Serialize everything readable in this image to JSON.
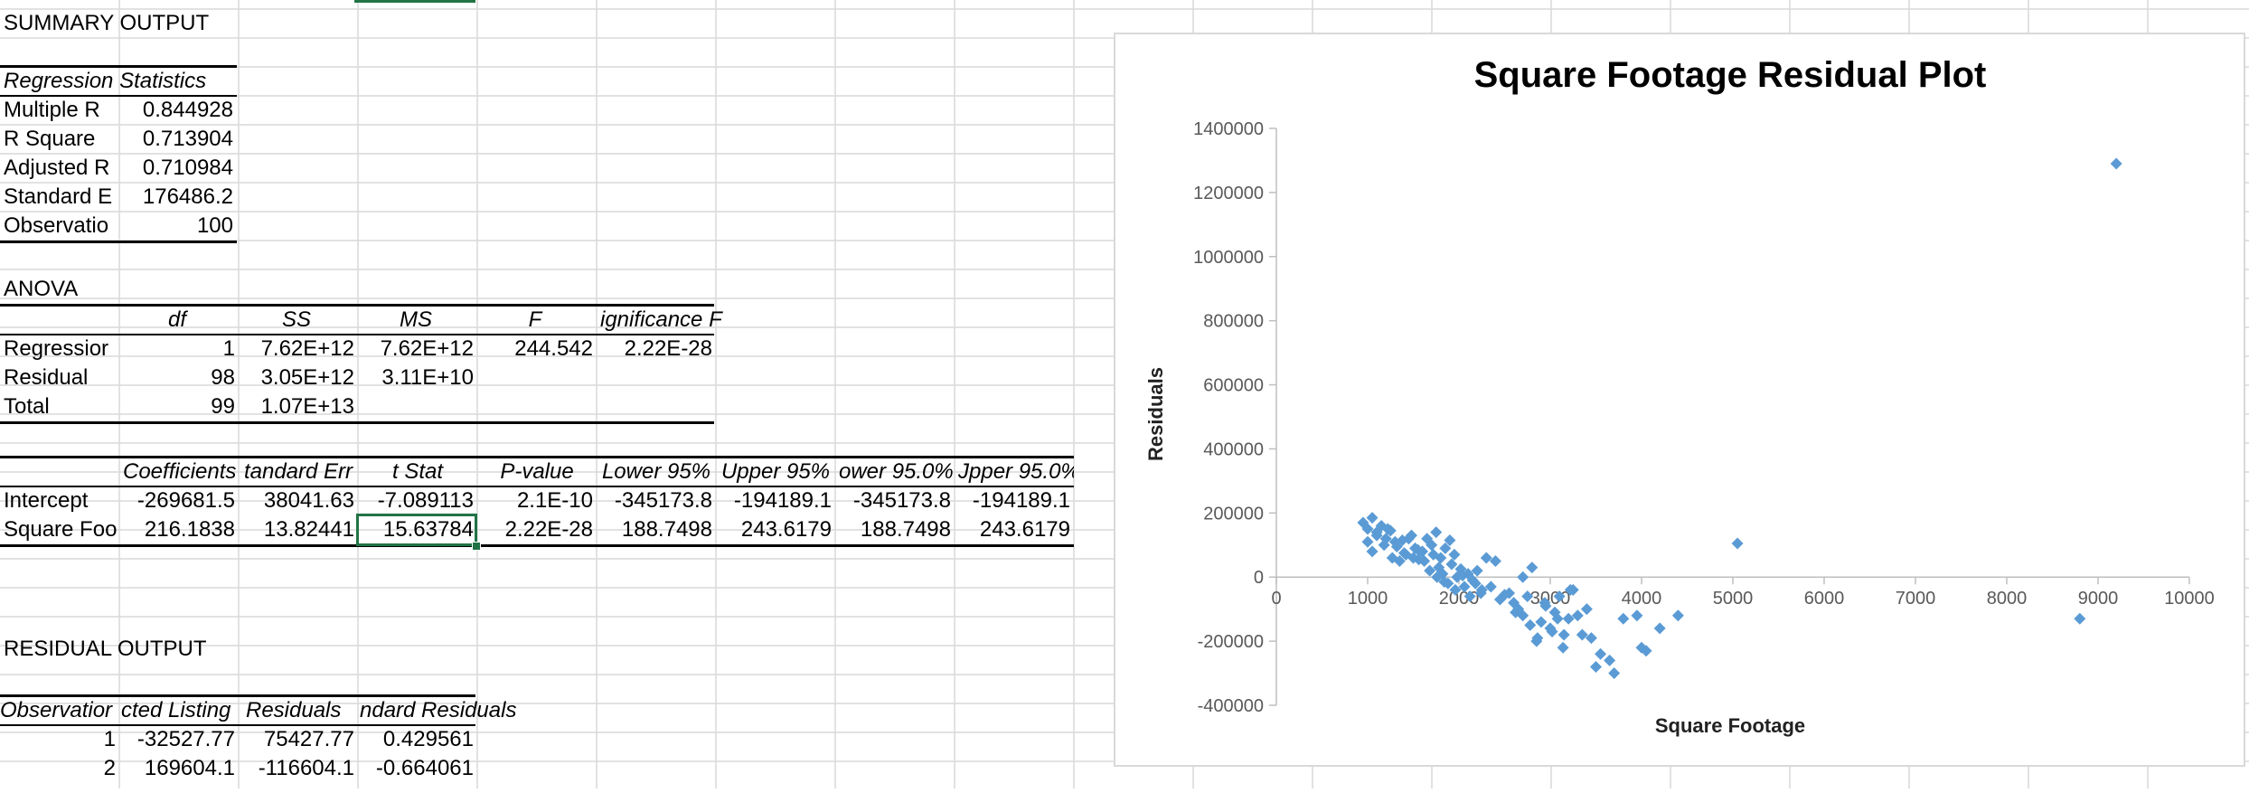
{
  "sheet": {
    "summary_title": "SUMMARY OUTPUT",
    "regression_statistics": {
      "heading": "Regression Statistics",
      "rows": [
        {
          "label": "Multiple R",
          "value": "0.844928"
        },
        {
          "label": "R Square",
          "value": "0.713904"
        },
        {
          "label": "Adjusted R",
          "value": "0.710984"
        },
        {
          "label": "Standard E",
          "value": "176486.2"
        },
        {
          "label": "Observatio",
          "value": "100"
        }
      ]
    },
    "anova": {
      "title": "ANOVA",
      "headers": [
        "df",
        "SS",
        "MS",
        "F",
        "ignificance F"
      ],
      "rows": [
        {
          "label": "Regressior",
          "df": "1",
          "ss": "7.62E+12",
          "ms": "7.62E+12",
          "f": "244.542",
          "sig": "2.22E-28"
        },
        {
          "label": "Residual",
          "df": "98",
          "ss": "3.05E+12",
          "ms": "3.11E+10",
          "f": "",
          "sig": ""
        },
        {
          "label": "Total",
          "df": "99",
          "ss": "1.07E+13",
          "ms": "",
          "f": "",
          "sig": ""
        }
      ]
    },
    "coefficients": {
      "headers": [
        "Coefficients",
        "tandard Err",
        "t Stat",
        "P-value",
        "Lower 95%",
        "Upper 95%",
        "ower 95.0%",
        "Jpper 95.0%"
      ],
      "rows": [
        {
          "label": "Intercept",
          "values": [
            "-269681.5",
            "38041.63",
            "-7.089113",
            "2.1E-10",
            "-345173.8",
            "-194189.1",
            "-345173.8",
            "-194189.1"
          ]
        },
        {
          "label": "Square Foo",
          "values": [
            "216.1838",
            "13.82441",
            "15.63784",
            "2.22E-28",
            "188.7498",
            "243.6179",
            "188.7498",
            "243.6179"
          ]
        }
      ]
    },
    "residual_output": {
      "title": "RESIDUAL OUTPUT",
      "headers": [
        "Observatior",
        "cted Listing",
        "Residuals",
        "ndard Residuals"
      ],
      "rows": [
        {
          "obs": "1",
          "predicted": "-32527.77",
          "residual": "75427.77",
          "std": "0.429561"
        },
        {
          "obs": "2",
          "predicted": "169604.1",
          "residual": "-116604.1",
          "std": "-0.664061"
        }
      ]
    }
  },
  "colors": {
    "marker": "#5b9bd5",
    "gridline": "#d9d9d9",
    "selection": "#217346"
  },
  "chart_data": {
    "type": "scatter",
    "title": "Square Footage  Residual Plot",
    "xlabel": "Square Footage",
    "ylabel": "Residuals",
    "xlim": [
      0,
      10000
    ],
    "ylim": [
      -400000,
      1400000
    ],
    "xticks": [
      0,
      1000,
      2000,
      3000,
      4000,
      5000,
      6000,
      7000,
      8000,
      9000,
      10000
    ],
    "yticks": [
      -400000,
      -200000,
      0,
      200000,
      400000,
      600000,
      800000,
      1000000,
      1200000,
      1400000
    ],
    "grid": false,
    "legend": "none",
    "series": [
      {
        "x": [
          950,
          1000,
          1050,
          1100,
          1150,
          1200,
          1250,
          1300,
          1000,
          1050,
          1100,
          1180,
          1220,
          1270,
          1320,
          1380,
          1420,
          1480,
          1520,
          1560,
          1600,
          1650,
          1700,
          1750,
          1800,
          1850,
          1900,
          1950,
          1350,
          1400,
          1450,
          1500,
          1550,
          1620,
          1680,
          1720,
          1780,
          1820,
          1880,
          1920,
          1980,
          2020,
          2060,
          2100,
          2150,
          2200,
          2250,
          2300,
          1760,
          1840,
          1960,
          2040,
          2120,
          2180,
          2240,
          2350,
          2400,
          2450,
          2500,
          2550,
          2600,
          2650,
          2700,
          2750,
          2800,
          2850,
          2900,
          2950,
          3000,
          3050,
          3100,
          3150,
          3200,
          3250,
          2620,
          2700,
          2780,
          2860,
          2940,
          3020,
          3080,
          3140,
          3220,
          3300,
          3350,
          3400,
          3450,
          3500,
          3550,
          3650,
          3700,
          3800,
          3950,
          4000,
          4050,
          4200,
          4400,
          5050,
          8800,
          9200
        ],
        "y": [
          170000,
          150000,
          185000,
          130000,
          160000,
          120000,
          145000,
          110000,
          110000,
          80000,
          140000,
          100000,
          150000,
          60000,
          95000,
          115000,
          70000,
          130000,
          90000,
          55000,
          80000,
          120000,
          100000,
          140000,
          60000,
          90000,
          115000,
          70000,
          50000,
          75000,
          120000,
          60000,
          85000,
          50000,
          20000,
          70000,
          30000,
          10000,
          -20000,
          40000,
          0,
          25000,
          -30000,
          10000,
          -10000,
          20000,
          -40000,
          60000,
          0,
          -15000,
          -40000,
          5000,
          -60000,
          -20000,
          -50000,
          -30000,
          50000,
          -70000,
          -55000,
          -50000,
          -80000,
          -100000,
          -120000,
          -60000,
          30000,
          -200000,
          -140000,
          -90000,
          -160000,
          -110000,
          -60000,
          -180000,
          -130000,
          -40000,
          -110000,
          0,
          -150000,
          -190000,
          -80000,
          -170000,
          -130000,
          -220000,
          -40000,
          -120000,
          -180000,
          -100000,
          -190000,
          -280000,
          -240000,
          -260000,
          -300000,
          -130000,
          -120000,
          -220000,
          -230000,
          -160000,
          -120000,
          105000,
          -130000,
          1290000
        ]
      }
    ]
  }
}
